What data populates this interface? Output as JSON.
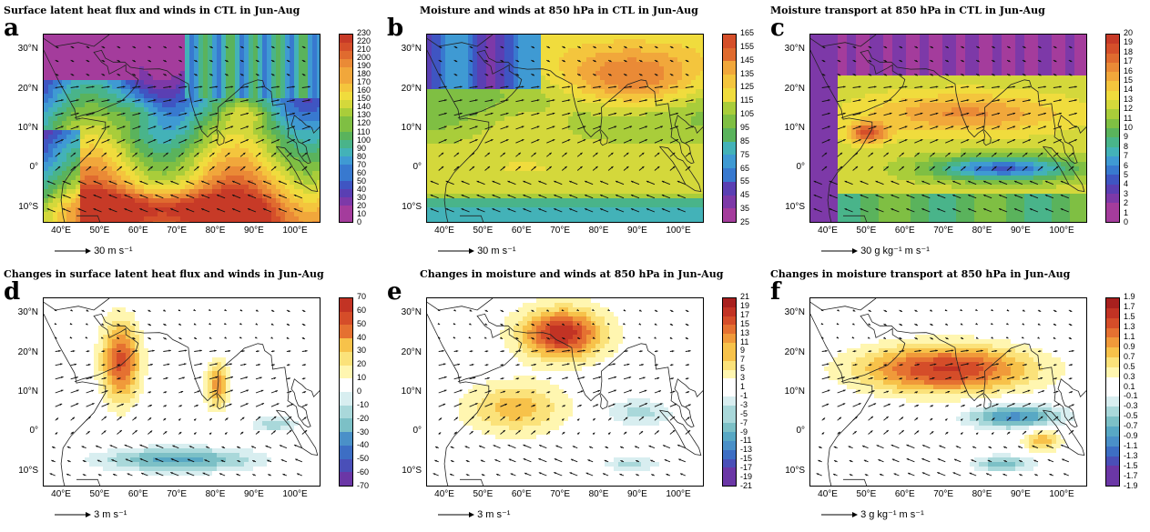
{
  "panels": [
    {
      "letter": "a",
      "title": "Surface latent heat flux and winds in CTL in Jun-Aug",
      "ref": "30 m s⁻¹",
      "scheme": "abs",
      "cbar": [
        "230",
        "220",
        "210",
        "200",
        "190",
        "180",
        "170",
        "160",
        "150",
        "140",
        "130",
        "120",
        "110",
        "100",
        "90",
        "80",
        "70",
        "60",
        "50",
        "40",
        "30",
        "20",
        "10",
        "0"
      ]
    },
    {
      "letter": "b",
      "title": "Moisture and winds at 850 hPa in CTL in Jun-Aug",
      "ref": "30 m s⁻¹",
      "scheme": "abs",
      "cbar": [
        "165",
        "155",
        "145",
        "135",
        "125",
        "115",
        "105",
        "95",
        "85",
        "75",
        "65",
        "55",
        "45",
        "35",
        "25"
      ]
    },
    {
      "letter": "c",
      "title": "Moisture transport at 850 hPa in CTL in Jun-Aug",
      "ref": "30 g kg⁻¹ m s⁻¹",
      "scheme": "abs",
      "cbar": [
        "20",
        "19",
        "18",
        "17",
        "16",
        "15",
        "14",
        "13",
        "12",
        "11",
        "10",
        "9",
        "8",
        "7",
        "6",
        "5",
        "4",
        "3",
        "2",
        "1",
        "0"
      ]
    },
    {
      "letter": "d",
      "title": "Changes in surface latent heat flux and winds in Jun-Aug",
      "ref": "3 m s⁻¹",
      "scheme": "diff",
      "cbar": [
        "70",
        "60",
        "50",
        "40",
        "30",
        "20",
        "10",
        "0",
        "-10",
        "-20",
        "-30",
        "-40",
        "-50",
        "-60",
        "-70"
      ]
    },
    {
      "letter": "e",
      "title": "Changes in moisture and winds at 850 hPa in Jun-Aug",
      "ref": "3 m s⁻¹",
      "scheme": "diff",
      "cbar": [
        "21",
        "19",
        "17",
        "15",
        "13",
        "11",
        "9",
        "7",
        "5",
        "3",
        "1",
        "-1",
        "-3",
        "-5",
        "-7",
        "-9",
        "-11",
        "-13",
        "-15",
        "-17",
        "-19",
        "-21"
      ]
    },
    {
      "letter": "f",
      "title": "Changes in moisture transport at 850 hPa in Jun-Aug",
      "ref": "3 g kg⁻¹ m s⁻¹",
      "scheme": "diff",
      "cbar": [
        "1.9",
        "1.7",
        "1.5",
        "1.3",
        "1.1",
        "0.9",
        "0.7",
        "0.5",
        "0.3",
        "0.1",
        "-0.1",
        "-0.3",
        "-0.5",
        "-0.7",
        "-0.9",
        "-1.1",
        "-1.3",
        "-1.5",
        "-1.7",
        "-1.9"
      ]
    }
  ],
  "lon_labels": [
    "40°E",
    "50°E",
    "60°E",
    "70°E",
    "80°E",
    "90°E",
    "100°E"
  ],
  "lat_labels": [
    "30°N",
    "20°N",
    "10°N",
    "0°",
    "10°S"
  ],
  "colors": {
    "abs": [
      "#a43c9c",
      "#7d39a8",
      "#5a3fb3",
      "#3f55c2",
      "#3879cf",
      "#3f9ad3",
      "#43b2b8",
      "#49b48a",
      "#5ab35c",
      "#7fbf43",
      "#a9cd3a",
      "#d4d83b",
      "#f0dc3d",
      "#f4c53d",
      "#f1a73b",
      "#ea8a36",
      "#e06b2f",
      "#d54f2a",
      "#c73a27"
    ],
    "diff": [
      "#6b37a6",
      "#4a4fb8",
      "#3d6ec4",
      "#4a90c8",
      "#58a8c4",
      "#7cc0c6",
      "#a9d8da",
      "#d8eef0",
      "#ffffff",
      "#ffffff",
      "#fff6b0",
      "#fbe27a",
      "#f7c24a",
      "#f09a3a",
      "#e57131",
      "#d54d29",
      "#c23324",
      "#a8201e"
    ]
  }
}
